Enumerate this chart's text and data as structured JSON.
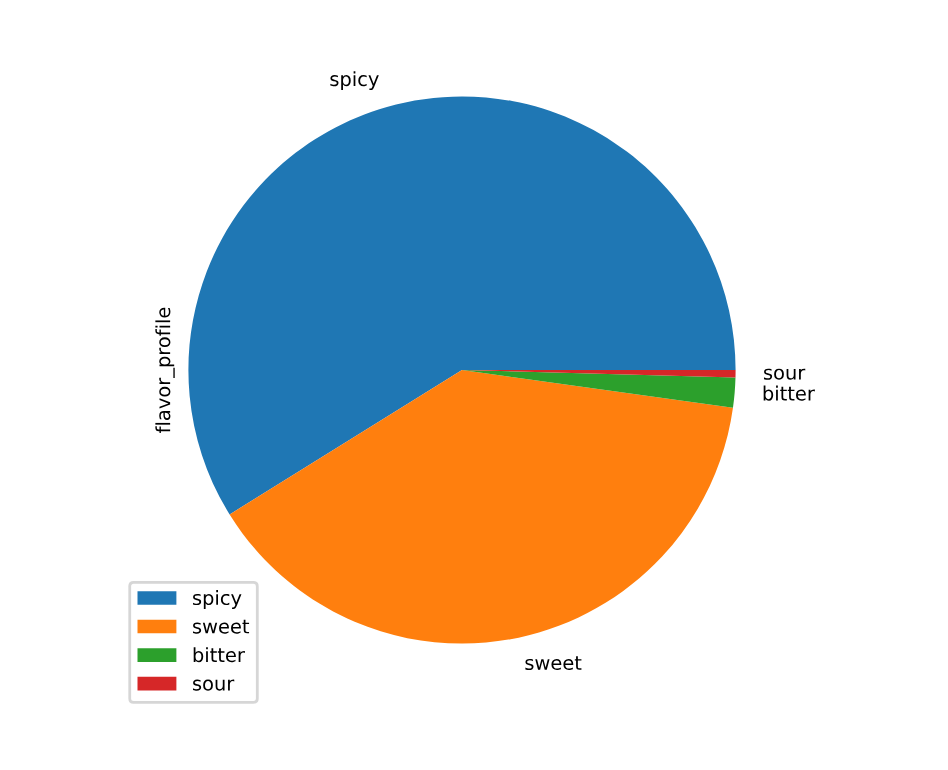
{
  "chart_data": {
    "type": "pie",
    "ylabel": "flavor_profile",
    "categories": [
      "spicy",
      "sweet",
      "bitter",
      "sour"
    ],
    "values": [
      58.85,
      38.94,
      1.77,
      0.44
    ],
    "colors": [
      "#1f77b4",
      "#ff7f0e",
      "#2ca02c",
      "#d62728"
    ],
    "legend": "lower left"
  }
}
